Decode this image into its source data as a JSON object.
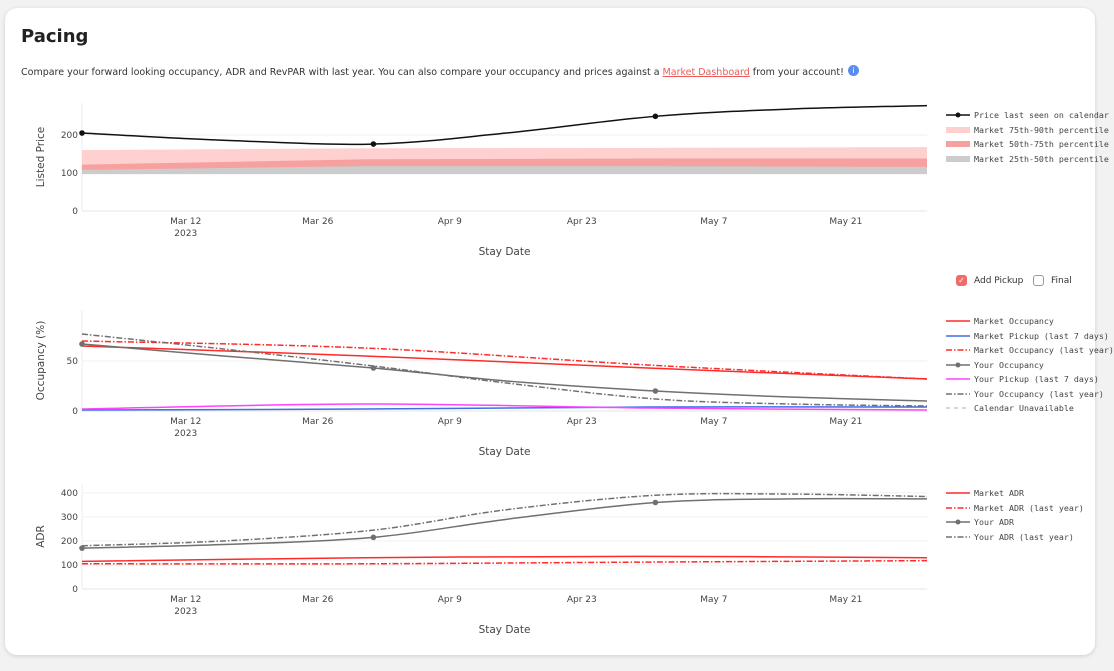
{
  "header": {
    "title": "Pacing",
    "desc_pre": "Compare your forward looking occupancy, ADR and RevPAR with last year. You can also compare your occupancy and prices against a ",
    "link": "Market Dashboard",
    "desc_post": " from your account!",
    "info_icon": "i"
  },
  "controls": {
    "add_pickup": {
      "label": "Add Pickup",
      "checked": true
    },
    "final": {
      "label": "Final",
      "checked": false
    }
  },
  "chart_data": [
    {
      "type": "line",
      "xlabel": "Stay Date",
      "ylabel": "Listed Price",
      "ylim": [
        0,
        284
      ],
      "yticks": [
        0,
        100,
        200
      ],
      "xticks": [
        {
          "day": 11,
          "label": "Mar 12",
          "sub": "2023"
        },
        {
          "day": 25,
          "label": "Mar 26"
        },
        {
          "day": 39,
          "label": "Apr 9"
        },
        {
          "day": 53,
          "label": "Apr 23"
        },
        {
          "day": 67,
          "label": "May 7"
        },
        {
          "day": 81,
          "label": "May 21"
        }
      ],
      "bands": [
        {
          "name": "Market 75th-90th percentile",
          "color": "#ffd0d0",
          "x": [
            0,
            30,
            60,
            89.6
          ],
          "lo": [
            104,
            112,
            112,
            108
          ],
          "hi": [
            160,
            165,
            166,
            168
          ]
        },
        {
          "name": "Market 50th-75th percentile",
          "color": "#f7a0a0",
          "x": [
            0,
            30,
            60,
            89.6
          ],
          "lo": [
            104,
            112,
            112,
            108
          ],
          "hi": [
            122,
            136,
            138,
            138
          ]
        },
        {
          "name": "Market 25th-50th percentile",
          "color": "#cccccc",
          "x": [
            0,
            30,
            60,
            89.6
          ],
          "lo": [
            97,
            97,
            97,
            97
          ],
          "hi": [
            108,
            118,
            118,
            116
          ]
        }
      ],
      "series": [
        {
          "name": "Price last seen on calendar",
          "color": "#111111",
          "dash": "",
          "markers": [
            0,
            30.9,
            60.8
          ],
          "x": [
            0,
            15,
            30.9,
            45,
            60.8,
            75,
            89.6
          ],
          "y": [
            205,
            186,
            176,
            205,
            249,
            268,
            277
          ]
        }
      ]
    },
    {
      "type": "line",
      "xlabel": "Stay Date",
      "ylabel": "Occupancy (%)",
      "ylim": [
        0,
        101
      ],
      "yticks": [
        0,
        50
      ],
      "xticks": [
        {
          "day": 11,
          "label": "Mar 12",
          "sub": "2023"
        },
        {
          "day": 25,
          "label": "Mar 26"
        },
        {
          "day": 39,
          "label": "Apr 9"
        },
        {
          "day": 53,
          "label": "Apr 23"
        },
        {
          "day": 67,
          "label": "May 7"
        },
        {
          "day": 81,
          "label": "May 21"
        }
      ],
      "series": [
        {
          "name": "Market Occupancy",
          "color": "#ff2a2a",
          "dash": "",
          "x": [
            0,
            30,
            60,
            89.6
          ],
          "y": [
            65,
            55,
            43,
            32
          ]
        },
        {
          "name": "Market Pickup (last 7 days)",
          "color": "#3c6fe8",
          "dash": "",
          "x": [
            0,
            30,
            60,
            89.6
          ],
          "y": [
            1,
            2,
            4,
            4
          ]
        },
        {
          "name": "Market Occupancy (last year)",
          "color": "#ff2a2a",
          "dash": "6,2,1.5,2",
          "x": [
            0,
            30,
            60,
            89.6
          ],
          "y": [
            70,
            63,
            46,
            32
          ]
        },
        {
          "name": "Your Occupancy",
          "color": "#707070",
          "dash": "",
          "markers": [
            0,
            30.9,
            60.8
          ],
          "x": [
            0,
            15,
            30.9,
            45,
            60.8,
            75,
            89.6
          ],
          "y": [
            67,
            55,
            43,
            30,
            20,
            14,
            10
          ]
        },
        {
          "name": "Your Pickup (last 7 days)",
          "color": "#ff44ff",
          "dash": "",
          "x": [
            0,
            30,
            60,
            89.6
          ],
          "y": [
            2,
            7,
            3,
            1
          ]
        },
        {
          "name": "Your Occupancy (last year)",
          "color": "#707070",
          "dash": "6,2,1.5,2",
          "x": [
            0,
            15,
            30.9,
            45,
            60.8,
            75,
            89.6
          ],
          "y": [
            77,
            62,
            45,
            28,
            12,
            7,
            5
          ]
        },
        {
          "name": "Calendar Unavailable",
          "color": "#cccccc",
          "dash": "4,4",
          "legend_only": true,
          "x": [],
          "y": []
        }
      ]
    },
    {
      "type": "line",
      "xlabel": "Stay Date",
      "ylabel": "ADR",
      "ylim": [
        0,
        437
      ],
      "yticks": [
        0,
        100,
        200,
        300,
        400
      ],
      "xticks": [
        {
          "day": 11,
          "label": "Mar 12",
          "sub": "2023"
        },
        {
          "day": 25,
          "label": "Mar 26"
        },
        {
          "day": 39,
          "label": "Apr 9"
        },
        {
          "day": 53,
          "label": "Apr 23"
        },
        {
          "day": 67,
          "label": "May 7"
        },
        {
          "day": 81,
          "label": "May 21"
        }
      ],
      "series": [
        {
          "name": "Market ADR",
          "color": "#ff2a2a",
          "dash": "",
          "x": [
            0,
            30,
            60,
            89.6
          ],
          "y": [
            115,
            130,
            136,
            130
          ]
        },
        {
          "name": "Market ADR (last year)",
          "color": "#ff2a2a",
          "dash": "6,2,1.5,2",
          "x": [
            0,
            30,
            60,
            89.6
          ],
          "y": [
            105,
            105,
            112,
            118
          ]
        },
        {
          "name": "Your ADR",
          "color": "#707070",
          "dash": "",
          "markers": [
            0,
            30.9,
            60.8
          ],
          "x": [
            0,
            15,
            30.9,
            45,
            60.8,
            75,
            89.6
          ],
          "y": [
            170,
            185,
            215,
            290,
            360,
            375,
            375
          ]
        },
        {
          "name": "Your ADR (last year)",
          "color": "#707070",
          "dash": "6,2,1.5,2",
          "x": [
            0,
            15,
            30.9,
            45,
            60.8,
            75,
            89.6
          ],
          "y": [
            180,
            200,
            245,
            330,
            390,
            395,
            385
          ]
        }
      ]
    }
  ]
}
